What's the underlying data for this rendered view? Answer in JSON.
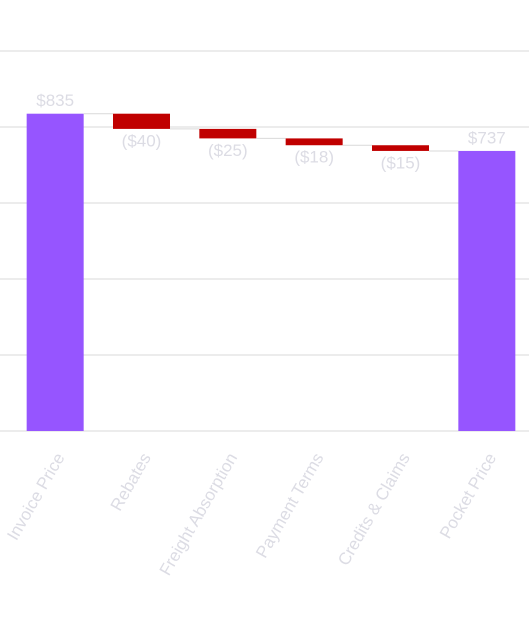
{
  "chart_data": {
    "type": "waterfall",
    "categories": [
      "Invoice Price",
      "Rebates",
      "Freight Absorption",
      "Payment Terms",
      "Credits & Claims",
      "Pocket Price"
    ],
    "values": [
      835,
      -40,
      -25,
      -18,
      -15,
      737
    ],
    "value_labels": [
      "$835",
      "($40)",
      "($25)",
      "($18)",
      "($15)",
      "$737"
    ],
    "total_color": "#9655ff",
    "decrease_color": "#c00000",
    "ylim": [
      0,
      1000
    ],
    "yticks": [
      0,
      200,
      400,
      600,
      800,
      1000
    ],
    "grid": true
  }
}
